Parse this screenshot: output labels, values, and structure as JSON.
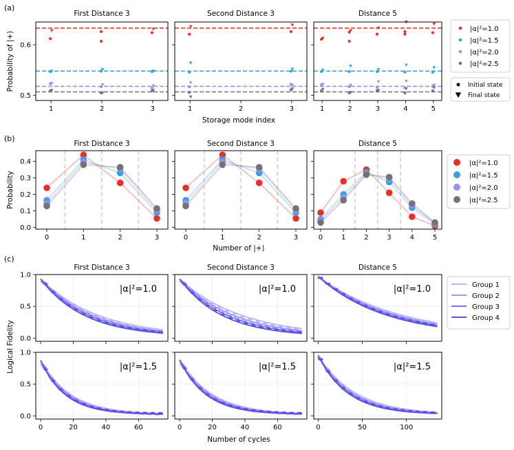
{
  "figure": {
    "panel_labels": [
      "(a)",
      "(b)",
      "(c)"
    ]
  },
  "chart_data": [
    {
      "id": "a",
      "type": "scatter",
      "subplot_titles": [
        "First Distance 3",
        "Second Distance 3",
        "Distance 5"
      ],
      "xlabel": "Storage mode index",
      "ylabel": "Probability of |+⟩",
      "ylim": [
        0.49,
        0.645
      ],
      "yticks": [
        0.5,
        0.6
      ],
      "ytick_labels": [
        "0.5",
        "0.6"
      ],
      "xticks": [
        [
          1,
          2,
          3
        ],
        [
          1,
          2,
          3
        ],
        [
          1,
          2,
          3,
          4,
          5
        ]
      ],
      "xlims": [
        [
          0.7,
          3.3
        ],
        [
          0.7,
          3.3
        ],
        [
          0.7,
          5.3
        ]
      ],
      "series_names": [
        "|α|²=1.0",
        "|α|²=1.5",
        "|α|²=2.0",
        "|α|²=2.5"
      ],
      "series_colors": [
        "#e8302a",
        "#3a9ee0",
        "#9d8ef0",
        "#737373"
      ],
      "reference_lines": [
        0.633,
        0.548,
        0.518,
        0.507
      ],
      "marker_legend": [
        "Initial state",
        "Final state"
      ],
      "initial": [
        [
          [
            0.612,
            0.607,
            0.626,
            0.624
          ],
          [
            0.547,
            0.548,
            0.547
          ],
          [
            0.523,
            0.517,
            0.515
          ],
          [
            0.509,
            0.505,
            0.509
          ]
        ],
        [
          [
            0.621,
            0.626
          ],
          [
            0.546,
            0.548
          ],
          [
            0.517,
            0.522
          ],
          [
            0.506,
            0.511
          ]
        ],
        [
          [
            0.611,
            0.607,
            0.625,
            0.621,
            0.626,
            0.621,
            0.624
          ],
          [
            0.547,
            0.547,
            0.547,
            0.546,
            0.546
          ],
          [
            0.521,
            0.517,
            0.516,
            0.515,
            0.518
          ],
          [
            0.509,
            0.505,
            0.509,
            0.505,
            0.509
          ]
        ]
      ],
      "final": [
        [
          [
            0.628,
            0.631
          ],
          [
            0.548,
            0.551,
            0.548
          ],
          [
            0.524,
            0.521,
            0.519
          ],
          [
            0.51,
            0.505,
            0.51
          ]
        ],
        [
          [
            0.636,
            0.639
          ],
          [
            0.564,
            0.552
          ],
          [
            0.525,
            0.52
          ],
          [
            0.497,
            0.513
          ]
        ],
        [
          [
            0.613,
            0.628,
            0.633,
            0.645,
            0.641
          ],
          [
            0.55,
            0.558,
            0.551,
            0.56,
            0.555
          ],
          [
            0.522,
            0.52,
            0.527,
            0.528,
            0.52
          ],
          [
            0.512,
            0.506,
            0.51,
            0.513,
            0.515
          ]
        ]
      ]
    },
    {
      "id": "b",
      "type": "line",
      "subplot_titles": [
        "First Distance 3",
        "Second Distance 3",
        "Distance 5"
      ],
      "xlabel": "Number of |+⟩",
      "ylabel": "Probability",
      "ylim": [
        -0.01,
        0.465
      ],
      "yticks": [
        0.0,
        0.1,
        0.2,
        0.3,
        0.4
      ],
      "ytick_labels": [
        "0.0",
        "0.1",
        "0.2",
        "0.3",
        "0.4"
      ],
      "xticks": [
        [
          0,
          1,
          2,
          3
        ],
        [
          0,
          1,
          2,
          3
        ],
        [
          0,
          1,
          2,
          3,
          4,
          5
        ]
      ],
      "xlims": [
        [
          -0.3,
          3.3
        ],
        [
          -0.3,
          3.3
        ],
        [
          -0.3,
          5.3
        ]
      ],
      "dividers": [
        [
          0.5,
          1.5,
          2.5
        ],
        [
          0.5,
          1.5,
          2.5
        ],
        [
          1.5,
          2.5,
          3.5
        ]
      ],
      "series_names": [
        "|α|²=1.0",
        "|α|²=1.5",
        "|α|²=2.0",
        "|α|²=2.5"
      ],
      "series_colors": [
        "#e8302a",
        "#3a9ee0",
        "#9d8ef0",
        "#737373"
      ],
      "values": [
        [
          [
            0.24,
            0.44,
            0.27,
            0.055
          ],
          [
            0.165,
            0.41,
            0.33,
            0.09
          ],
          [
            0.145,
            0.395,
            0.355,
            0.105
          ],
          [
            0.13,
            0.38,
            0.365,
            0.115
          ]
        ],
        [
          [
            0.24,
            0.44,
            0.27,
            0.055
          ],
          [
            0.165,
            0.41,
            0.33,
            0.09
          ],
          [
            0.145,
            0.395,
            0.355,
            0.105
          ],
          [
            0.13,
            0.38,
            0.365,
            0.115
          ]
        ],
        [
          [
            0.09,
            0.28,
            0.35,
            0.21,
            0.065,
            0.01
          ],
          [
            0.05,
            0.2,
            0.335,
            0.275,
            0.12,
            0.02
          ],
          [
            0.04,
            0.18,
            0.325,
            0.295,
            0.135,
            0.025
          ],
          [
            0.03,
            0.165,
            0.32,
            0.305,
            0.145,
            0.03
          ]
        ]
      ]
    },
    {
      "id": "c",
      "type": "line",
      "subplot_titles": [
        "First Distance 3",
        "Second Distance 3",
        "Distance 5"
      ],
      "xlabel": "Number of cycles",
      "ylabel": "Logical Fidelity",
      "ylim": [
        -0.05,
        1.0
      ],
      "yticks": [
        0.0,
        0.5,
        1.0
      ],
      "ytick_labels": [
        "0.0",
        "0.5",
        "1.0"
      ],
      "xticks": [
        [
          0,
          20,
          40,
          60
        ],
        [
          0,
          20,
          40,
          60
        ],
        [
          0,
          50,
          100
        ]
      ],
      "xlims": [
        [
          -3,
          78
        ],
        [
          -3,
          78
        ],
        [
          -5,
          140
        ]
      ],
      "row_annotations": [
        "|α|²=1.0",
        "|α|²=1.5"
      ],
      "series_names": [
        "Group 1",
        "Group 2",
        "Group 3",
        "Group 4"
      ],
      "series_colors": [
        "#b7b5f4",
        "#a19cf2",
        "#7d74ec",
        "#5b4fe3"
      ],
      "decay_rates": [
        [
          [
            0.028,
            0.031,
            0.034,
            0.037
          ],
          [
            0.026,
            0.03,
            0.034,
            0.038
          ],
          [
            0.0108,
            0.0116,
            0.0124,
            0.0132
          ]
        ],
        [
          [
            0.054,
            0.058,
            0.062,
            0.066
          ],
          [
            0.05,
            0.054,
            0.058,
            0.062
          ],
          [
            0.024,
            0.026,
            0.028,
            0.03
          ]
        ]
      ],
      "fidelity_start": [
        [
          0.93,
          0.93,
          0.97
        ],
        [
          0.87,
          0.88,
          0.95
        ]
      ],
      "fidelity_floor": 0.02
    }
  ]
}
